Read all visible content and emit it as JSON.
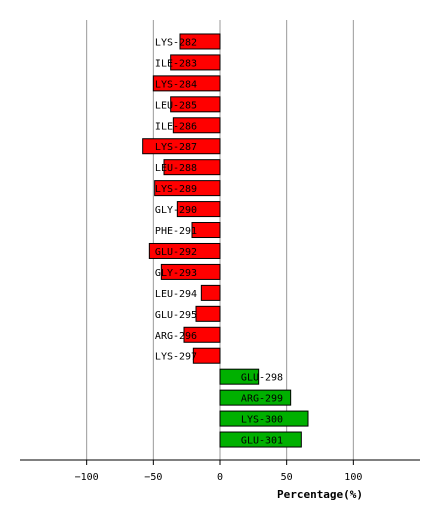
{
  "chart_data": {
    "type": "bar",
    "orientation": "horizontal",
    "xlabel": "Percentage(%)",
    "ylabel": "",
    "title": "",
    "xlim": [
      -150,
      150
    ],
    "xticks": [
      -100,
      -50,
      0,
      50,
      100
    ],
    "grid": true,
    "colors": {
      "negative": "#ff0000",
      "positive": "#00b000",
      "edge": "#000000",
      "grid": "#999999"
    },
    "categories": [
      "LYS-282",
      "ILE-283",
      "LYS-284",
      "LEU-285",
      "ILE-286",
      "LYS-287",
      "LEU-288",
      "LYS-289",
      "GLY-290",
      "PHE-291",
      "GLU-292",
      "GLY-293",
      "LEU-294",
      "GLU-295",
      "ARG-296",
      "LYS-297",
      "GLU-298",
      "ARG-299",
      "LYS-300",
      "GLU-301"
    ],
    "values": [
      -30,
      -37,
      -50,
      -37,
      -35,
      -58,
      -42,
      -49,
      -32,
      -21,
      -53,
      -44,
      -14,
      -18,
      -27,
      -20,
      29,
      53,
      66,
      61
    ]
  }
}
